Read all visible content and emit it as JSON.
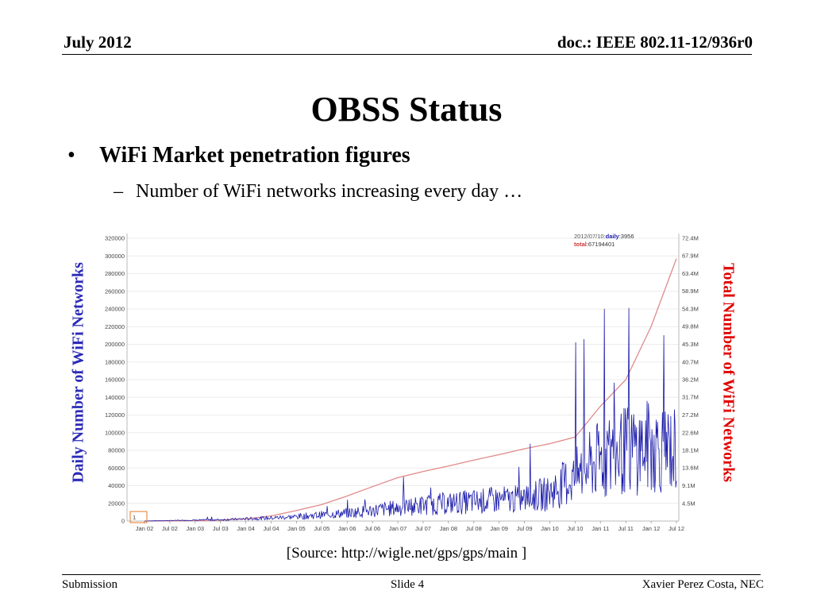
{
  "header": {
    "date": "July 2012",
    "doc": "doc.: IEEE 802.11-12/936r0"
  },
  "slide": {
    "title": "OBSS Status",
    "bullet": "WiFi Market penetration figures",
    "sub_bullet": "Number of WiFi networks increasing every day …"
  },
  "axes": {
    "left_title": "Daily Number of WiFi Networks",
    "right_title": "Total Number of WiFi Networks",
    "left_color": "#2B2BB8",
    "right_color": "#E00000"
  },
  "source": "[Source: http://wigle.net/gps/gps/main ]",
  "footer": {
    "left": "Submission",
    "center": "Slide 4",
    "right": "Xavier Perez Costa, NEC"
  },
  "chart_data": {
    "type": "line",
    "x": [
      "Jan 02",
      "Jul 02",
      "Jan 03",
      "Jul 03",
      "Jan 04",
      "Jul 04",
      "Jan 05",
      "Jul 05",
      "Jan 06",
      "Jul 06",
      "Jan 07",
      "Jul 07",
      "Jan 08",
      "Jul 08",
      "Jan 09",
      "Jul 09",
      "Jan 10",
      "Jul 10",
      "Jan 11",
      "Jul 11",
      "Jan 12",
      "Jul 12"
    ],
    "ylim": [
      0,
      320000
    ],
    "y_ticks": [
      "0",
      "20000",
      "40000",
      "60000",
      "80000",
      "100000",
      "120000",
      "140000",
      "160000",
      "180000",
      "200000",
      "220000",
      "240000",
      "260000",
      "280000",
      "300000",
      "320000"
    ],
    "y2_ticks": [
      "4.5M",
      "9.1M",
      "13.6M",
      "18.1M",
      "22.6M",
      "27.2M",
      "31.7M",
      "36.2M",
      "40.7M",
      "45.3M",
      "49.8M",
      "54.3M",
      "58.9M",
      "63.4M",
      "67.9M",
      "72.4M"
    ],
    "legend": {
      "date": "2012/07/10:",
      "daily_label": "daily",
      "daily_value": ":3956",
      "total_label": "total",
      "total_value": ":67194401"
    },
    "cursor_label": "1",
    "series": [
      {
        "name": "daily",
        "color": "#1a1aaa",
        "axis": "left",
        "values": [
          0,
          500,
          1000,
          1500,
          2500,
          3500,
          5000,
          7000,
          9000,
          12000,
          15000,
          18000,
          20000,
          22000,
          24000,
          25000,
          32000,
          50000,
          70000,
          80000,
          85000,
          80000
        ]
      },
      {
        "name": "total",
        "color": "#e08a8a",
        "axis": "right",
        "values_millions": [
          0,
          0.05,
          0.1,
          0.25,
          0.55,
          1.3,
          2.7,
          4.2,
          6.4,
          8.8,
          11.1,
          12.7,
          14.1,
          15.6,
          17,
          18.5,
          19.8,
          21.5,
          29.4,
          36.2,
          49.8,
          67.2
        ]
      }
    ]
  }
}
